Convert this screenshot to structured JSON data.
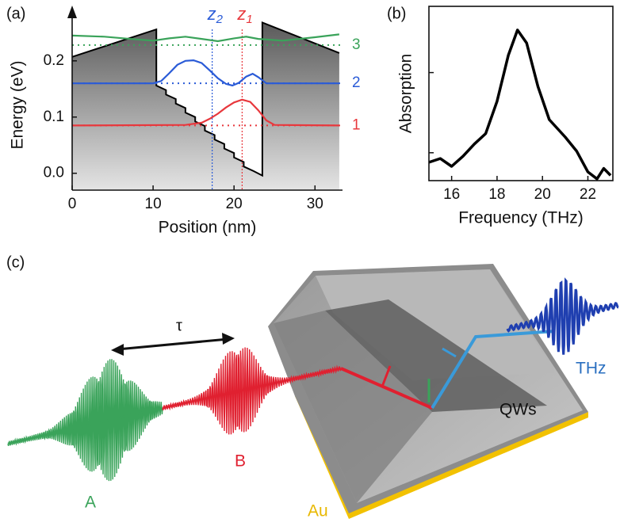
{
  "chart_data": [
    {
      "type": "line",
      "label": "(a)",
      "xlabel": "Position (nm)",
      "ylabel": "Energy (eV)",
      "xlim": [
        0,
        33.4
      ],
      "ylim": [
        -0.03,
        0.273
      ],
      "xticks": [
        0,
        10,
        20,
        30
      ],
      "yticks": [
        {
          "value": 0,
          "label": "0.0"
        },
        0.1,
        0.2
      ],
      "profile": {
        "color": "#000000",
        "x": [
          0,
          10.4,
          10.4,
          11.6,
          11.6,
          12.8,
          12.8,
          14,
          14,
          15.2,
          15.2,
          16.4,
          16.4,
          17.6,
          17.6,
          18.8,
          18.8,
          20,
          20,
          21.2,
          21.2,
          22.4,
          23.5,
          23.5,
          33
        ],
        "y": [
          0.207,
          0.256,
          0.156,
          0.148,
          0.14,
          0.132,
          0.124,
          0.116,
          0.108,
          0.1,
          0.092,
          0.084,
          0.076,
          0.068,
          0.06,
          0.052,
          0.044,
          0.036,
          0.028,
          0.02,
          0.012,
          0.004,
          -0.004,
          0.268,
          0.214
        ]
      },
      "series": [
        {
          "name": "1",
          "color": "#e8383d",
          "level": 0.085,
          "x": [
            0,
            14,
            16,
            17,
            18,
            19,
            20,
            21,
            22,
            23,
            24,
            25,
            33
          ],
          "values": [
            0.085,
            0.086,
            0.09,
            0.097,
            0.106,
            0.117,
            0.126,
            0.131,
            0.127,
            0.112,
            0.094,
            0.086,
            0.085
          ]
        },
        {
          "name": "2",
          "color": "#2a5bd7",
          "level": 0.16,
          "x": [
            0,
            10,
            11,
            12,
            13,
            14,
            15,
            16,
            17,
            18,
            19,
            19.8,
            20.6,
            21.5,
            22.3,
            23,
            24,
            33
          ],
          "values": [
            0.16,
            0.16,
            0.164,
            0.178,
            0.193,
            0.2,
            0.201,
            0.196,
            0.183,
            0.169,
            0.159,
            0.156,
            0.161,
            0.172,
            0.177,
            0.171,
            0.16,
            0.16
          ]
        },
        {
          "name": "3",
          "color": "#3aa35a",
          "level": 0.228,
          "x": [
            0,
            4,
            8,
            10,
            12,
            14,
            16,
            18,
            20,
            21.5,
            23,
            26,
            30,
            33
          ],
          "values": [
            0.245,
            0.243,
            0.238,
            0.236,
            0.24,
            0.243,
            0.239,
            0.235,
            0.24,
            0.243,
            0.239,
            0.236,
            0.242,
            0.247
          ]
        }
      ],
      "markers": [
        {
          "x": 17.3,
          "color": "#2a5bd7",
          "label": "z",
          "sub": "2"
        },
        {
          "x": 21,
          "color": "#e8383d",
          "label": "z",
          "sub": "1"
        }
      ]
    },
    {
      "type": "line",
      "label": "(b)",
      "xlabel": "Frequency (THz)",
      "ylabel": "Absorption",
      "xlim": [
        15,
        23.1
      ],
      "ylim": [
        0,
        1
      ],
      "xticks": [
        16,
        18,
        20,
        22
      ],
      "yticks": [
        0.16,
        0.62
      ],
      "color": "#000000",
      "x": [
        15,
        15.5,
        16,
        16.5,
        17,
        17.5,
        18,
        18.5,
        18.9,
        19.3,
        19.8,
        20.3,
        21,
        21.5,
        22,
        22.4,
        22.7,
        23
      ],
      "values": [
        0.105,
        0.127,
        0.082,
        0.14,
        0.21,
        0.27,
        0.455,
        0.72,
        0.864,
        0.79,
        0.54,
        0.35,
        0.25,
        0.17,
        0.05,
        0.01,
        0.07,
        0.03
      ]
    }
  ],
  "illustration": {
    "label": "(c)",
    "delay": "τ",
    "pulse_a": "A",
    "pulse_b": "B",
    "thz": "THz",
    "qws": "QWs",
    "au": "Au"
  }
}
